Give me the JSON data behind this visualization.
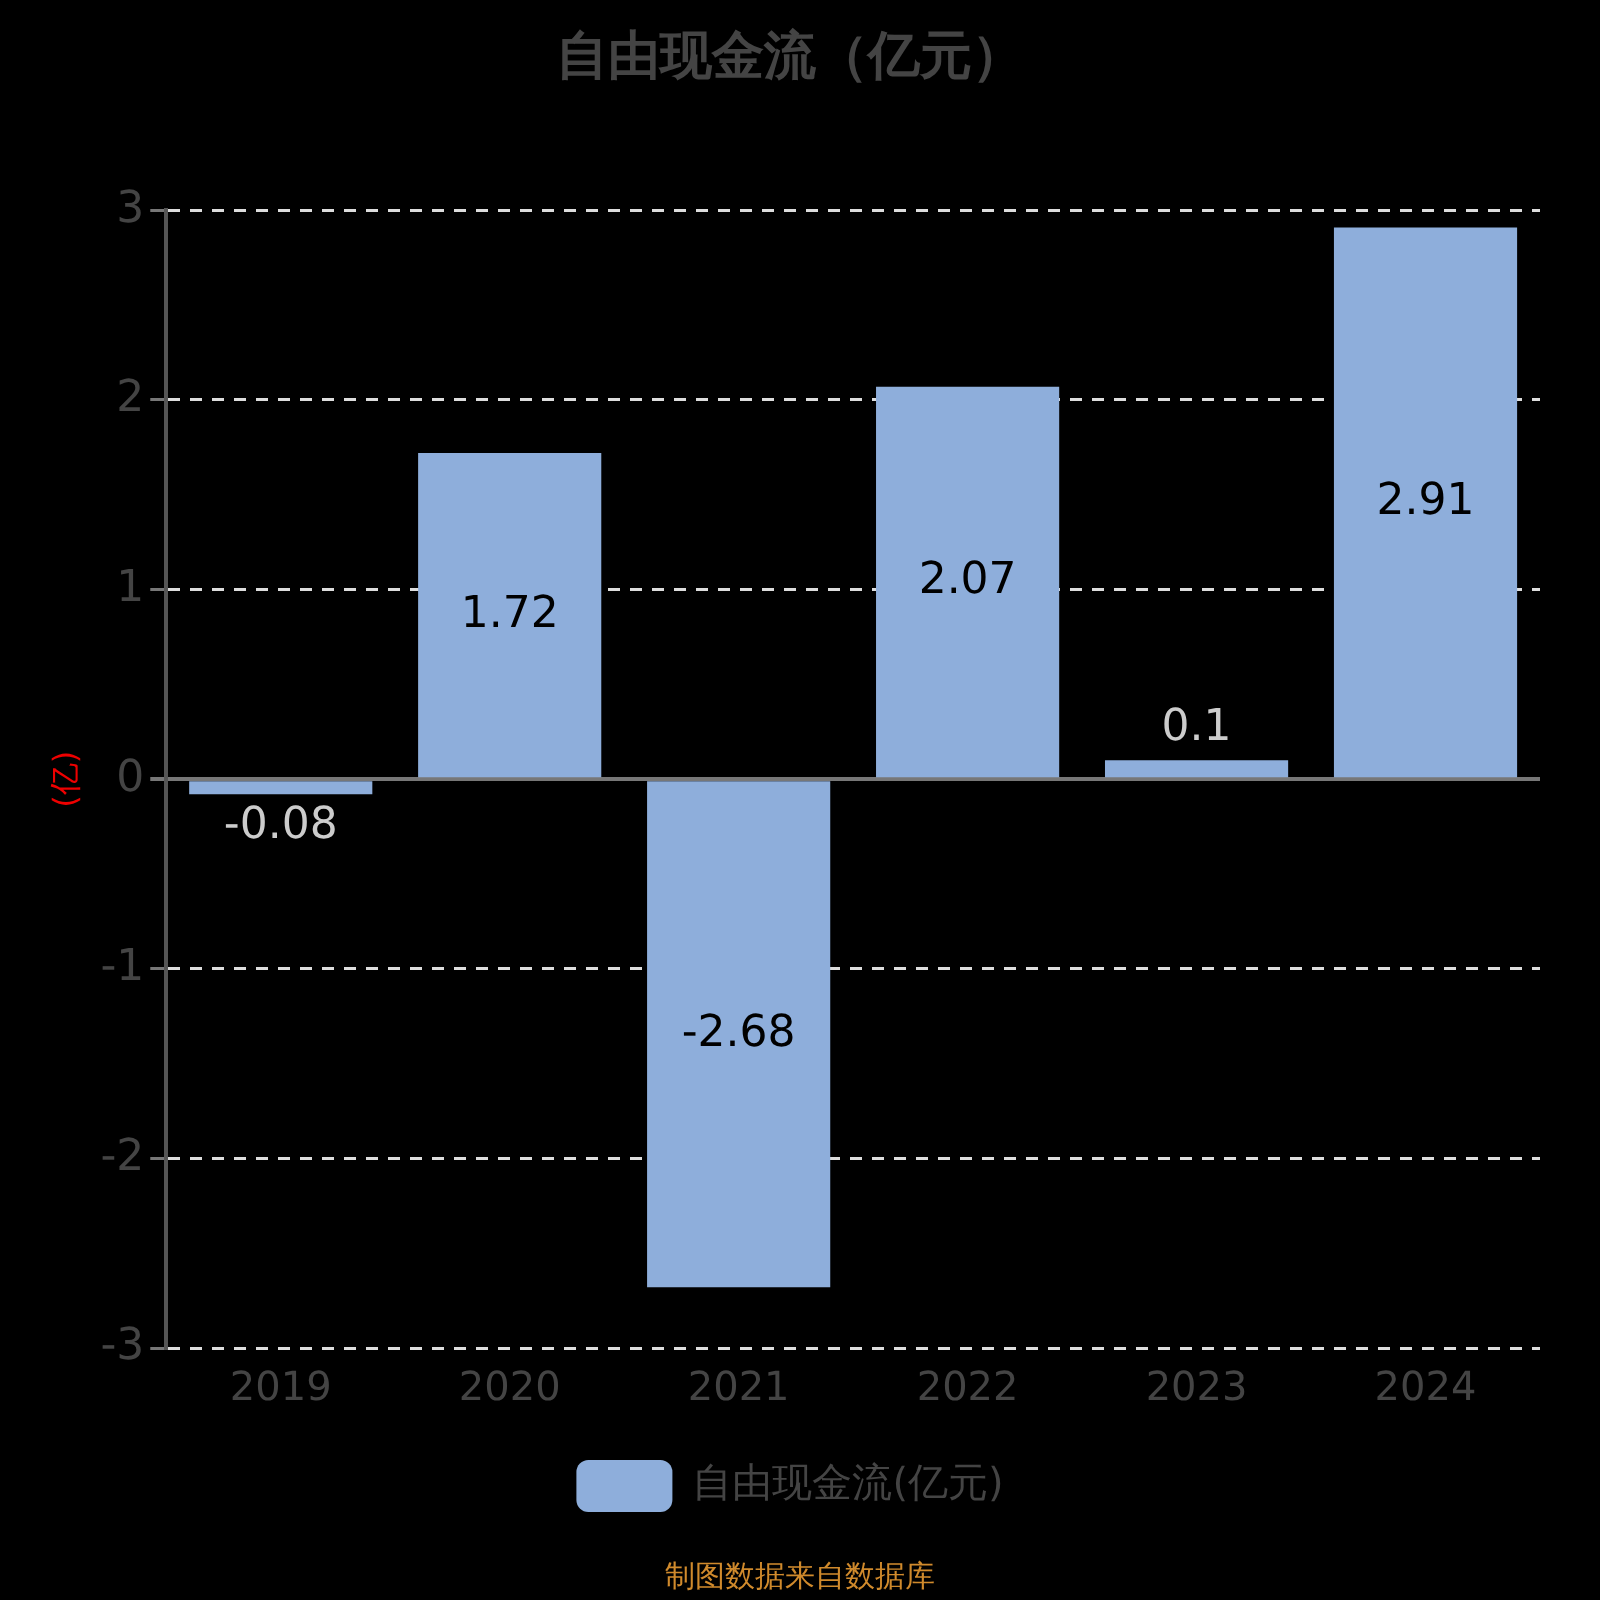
{
  "chart_data": {
    "type": "bar",
    "title": "自由现金流（亿元）",
    "ylabel": "(亿)",
    "categories": [
      "2019",
      "2020",
      "2021",
      "2022",
      "2023",
      "2024"
    ],
    "series": [
      {
        "name": "自由现金流(亿元)",
        "color": "#8eaedb",
        "values": [
          -0.08,
          1.72,
          -2.68,
          2.07,
          0.1,
          2.91
        ]
      }
    ],
    "ylim": [
      -3,
      3
    ],
    "yticks": [
      -3,
      -2,
      -1,
      0,
      1,
      2,
      3
    ],
    "grid": "y",
    "legend": "bottom",
    "data_labels": true,
    "annotations": [
      "制图数据来自数据库"
    ]
  }
}
